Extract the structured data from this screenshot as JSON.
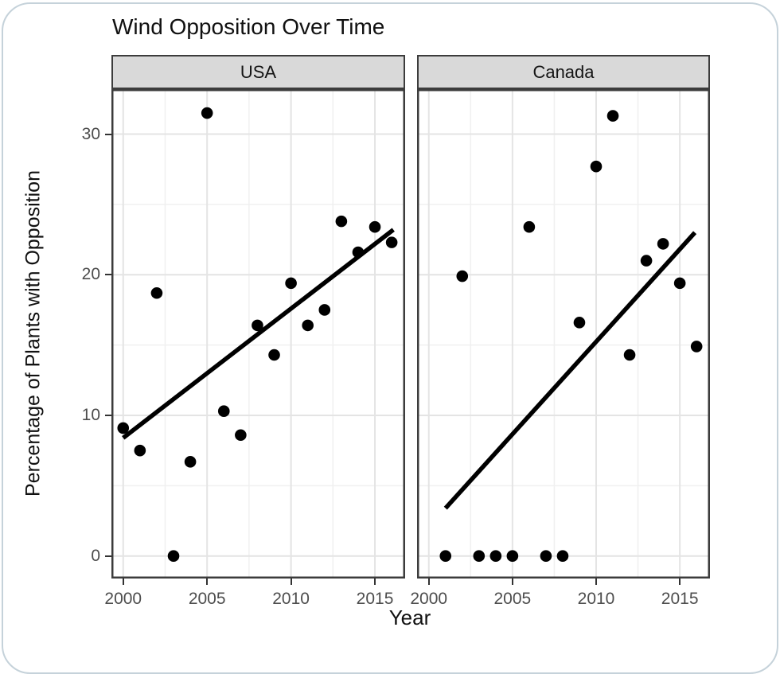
{
  "chart_data": {
    "type": "scatter",
    "title": "Wind Opposition Over Time",
    "xlabel": "Year",
    "ylabel": "Percentage of Plants with Opposition",
    "xlim": [
      1999.3,
      2016.8
    ],
    "ylim": [
      -1.6,
      33.2
    ],
    "x_major_ticks": [
      2000,
      2005,
      2010,
      2015
    ],
    "x_minor_ticks": [
      2002.5,
      2007.5,
      2012.5
    ],
    "y_major_ticks": [
      0,
      10,
      20,
      30
    ],
    "y_minor_ticks": [
      5,
      15,
      25
    ],
    "grid": true,
    "legend_position": "none",
    "facets": [
      {
        "label": "USA",
        "points": {
          "x": [
            2000,
            2001,
            2002,
            2003,
            2004,
            2005,
            2006,
            2007,
            2008,
            2009,
            2010,
            2011,
            2012,
            2013,
            2014,
            2015,
            2016
          ],
          "y": [
            9.1,
            7.5,
            18.7,
            0,
            6.7,
            31.5,
            10.3,
            8.6,
            16.4,
            14.3,
            19.4,
            16.4,
            17.5,
            23.8,
            21.6,
            23.4,
            22.3
          ]
        },
        "trend": {
          "x": [
            2000,
            2016.1
          ],
          "y": [
            8.4,
            23.2
          ]
        }
      },
      {
        "label": "Canada",
        "points": {
          "x": [
            2001,
            2002,
            2003,
            2004,
            2005,
            2006,
            2007,
            2008,
            2009,
            2010,
            2011,
            2012,
            2013,
            2014,
            2015,
            2016
          ],
          "y": [
            0,
            19.9,
            0,
            0,
            0,
            23.4,
            0,
            0,
            16.6,
            27.7,
            31.3,
            14.3,
            21.0,
            22.2,
            19.4,
            14.9
          ]
        },
        "trend": {
          "x": [
            2001,
            2015.9
          ],
          "y": [
            3.4,
            23.0
          ]
        }
      }
    ],
    "style": {
      "point_color": "#000000",
      "trend_color": "#000000",
      "strip_background": "#d9d9d9",
      "strip_border": "#3c3c3c",
      "panel_border": "#3c3c3c",
      "grid_major_color": "#e4e4e4",
      "grid_minor_color": "#f0f0f0",
      "tick_color": "#333333",
      "tick_label_color": "#4d4d4d",
      "text_color": "#111111",
      "card_border_color": "#c5d2da"
    }
  }
}
